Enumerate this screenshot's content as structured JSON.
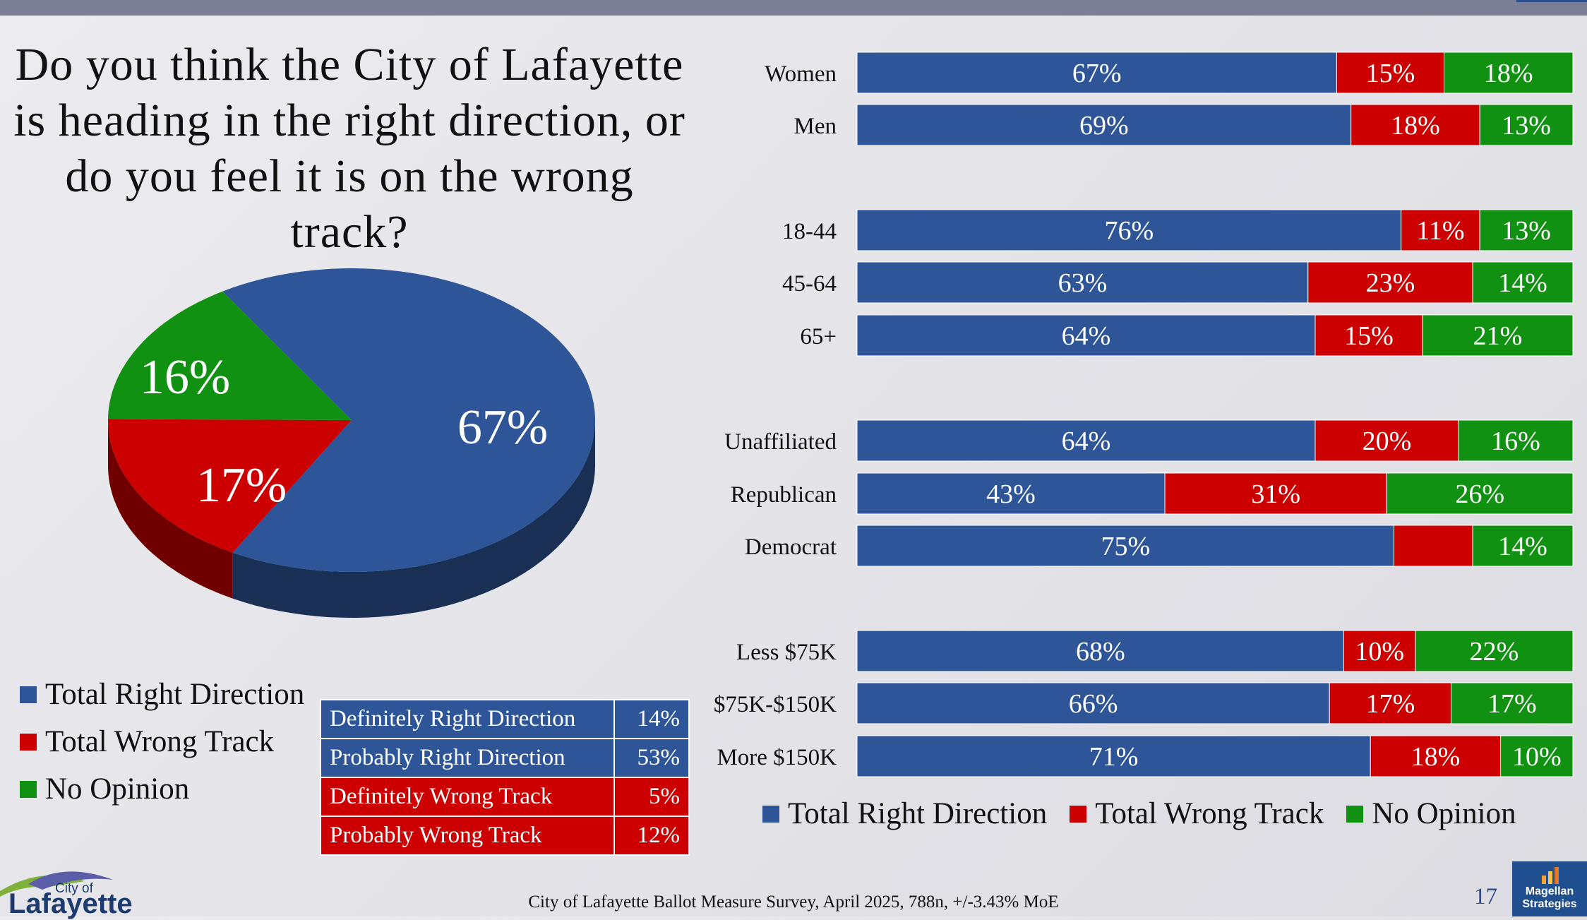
{
  "title": "Do you think the City of Lafayette is heading in the right direction, or do you feel it is on the wrong track?",
  "colors": {
    "right": "#2d5597",
    "wrong": "#cc0000",
    "none": "#119111"
  },
  "chart_data": [
    {
      "type": "pie",
      "labels": [
        "Total Right Direction",
        "Total Wrong Track",
        "No Opinion"
      ],
      "values": [
        67,
        17,
        16
      ],
      "value_labels": [
        "67%",
        "17%",
        "16%"
      ],
      "legend": [
        "Total Right Direction",
        "Total Wrong Track",
        "No Opinion"
      ],
      "legend_placement": "bottom-left"
    },
    {
      "type": "bar",
      "stacked": true,
      "orientation": "horizontal",
      "categories": [
        "Women",
        "Men",
        "18-44",
        "45-64",
        "65+",
        "Unaffiliated",
        "Republican",
        "Democrat",
        "Less $75K",
        "$75K-$150K",
        "More $150K"
      ],
      "series": [
        {
          "name": "Total Right Direction",
          "values": [
            67,
            69,
            76,
            63,
            64,
            64,
            43,
            75,
            68,
            66,
            71
          ],
          "labels": [
            "67%",
            "69%",
            "76%",
            "63%",
            "64%",
            "64%",
            "43%",
            "75%",
            "68%",
            "66%",
            "71%"
          ]
        },
        {
          "name": "Total Wrong Track",
          "values": [
            15,
            18,
            11,
            23,
            15,
            20,
            31,
            11,
            10,
            17,
            18
          ],
          "labels": [
            "15%",
            "18%",
            "11%",
            "23%",
            "15%",
            "20%",
            "31%",
            "",
            "10%",
            "17%",
            "18%"
          ]
        },
        {
          "name": "No Opinion",
          "values": [
            18,
            13,
            13,
            14,
            21,
            16,
            26,
            14,
            22,
            17,
            10
          ],
          "labels": [
            "18%",
            "13%",
            "13%",
            "14%",
            "21%",
            "16%",
            "26%",
            "14%",
            "22%",
            "17%",
            "10%"
          ]
        }
      ],
      "xlim": [
        0,
        100
      ],
      "legend_placement": "bottom"
    }
  ],
  "detail_table": [
    {
      "label": "Definitely Right Direction",
      "value": "14%"
    },
    {
      "label": "Probably Right Direction",
      "value": "53%"
    },
    {
      "label": "Definitely Wrong Track",
      "value": "5%"
    },
    {
      "label": "Probably Wrong Track",
      "value": "12%"
    }
  ],
  "footer": "City of Lafayette Ballot Measure Survey, April 2025, 788n, +/-3.43% MoE",
  "page_number": "17",
  "logo_left": {
    "line1": "City of",
    "line2": "Lafayette"
  },
  "logo_right": {
    "line1": "Magellan",
    "line2": "Strategies"
  }
}
